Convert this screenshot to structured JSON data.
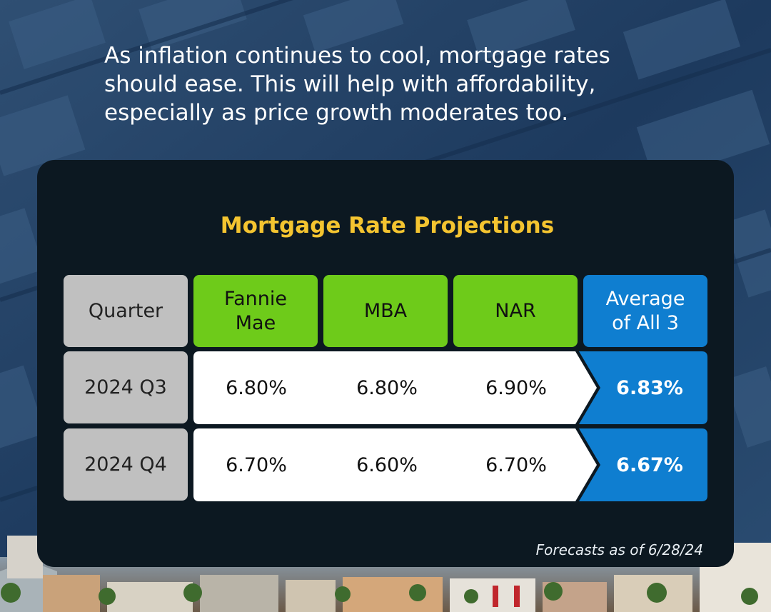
{
  "headline": {
    "line1": "As inflation continues to cool, mortgage rates",
    "line2": "should ease. This will help with affordability,",
    "line3": "especially as price growth moderates too."
  },
  "colors": {
    "title": "#f4c430",
    "source_header": "#6ecb1a",
    "average": "#0f7ed0",
    "quarter": "#c0c0c0",
    "card": "#0c1821"
  },
  "chart_data": {
    "type": "table",
    "title": "Mortgage Rate Projections",
    "columns": [
      {
        "line1": "Quarter",
        "line2": ""
      },
      {
        "line1": "Fannie",
        "line2": "Mae"
      },
      {
        "line1": "MBA",
        "line2": ""
      },
      {
        "line1": "NAR",
        "line2": ""
      },
      {
        "line1": "Average",
        "line2": "of All 3"
      }
    ],
    "rows": [
      {
        "quarter": "2024 Q3",
        "fannie_mae": "6.80%",
        "mba": "6.80%",
        "nar": "6.90%",
        "average": "6.83%"
      },
      {
        "quarter": "2024 Q4",
        "fannie_mae": "6.70%",
        "mba": "6.60%",
        "nar": "6.70%",
        "average": "6.67%"
      }
    ],
    "footnote": "Forecasts as of 6/28/24"
  }
}
